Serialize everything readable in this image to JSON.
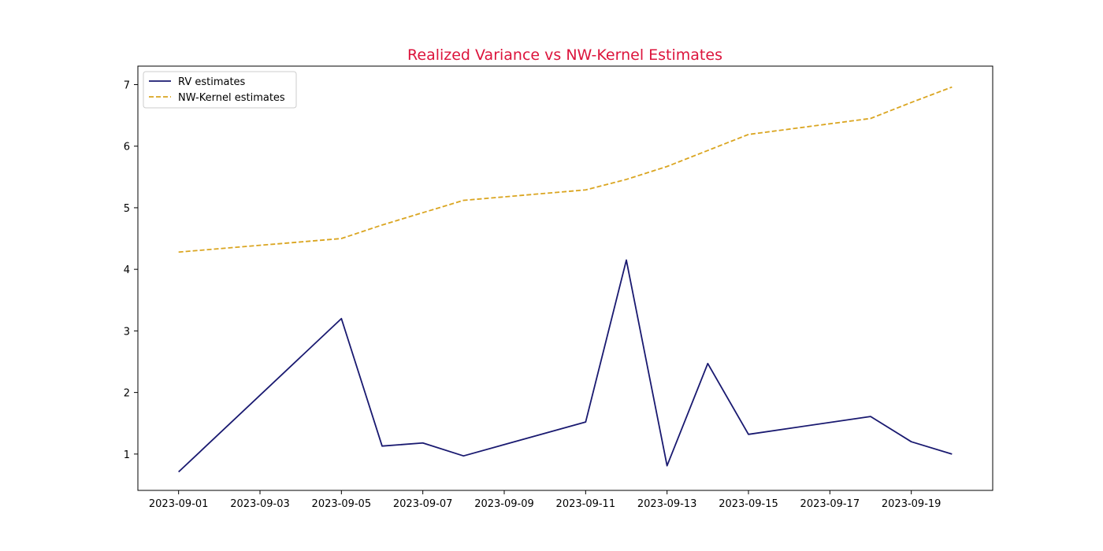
{
  "chart_data": {
    "type": "line",
    "title": "Realized Variance vs NW-Kernel Estimates",
    "title_color": "#dc143c",
    "xlabel": "",
    "ylabel": "",
    "x_dates": [
      "2023-09-01",
      "2023-09-05",
      "2023-09-06",
      "2023-09-07",
      "2023-09-08",
      "2023-09-11",
      "2023-09-12",
      "2023-09-13",
      "2023-09-14",
      "2023-09-15",
      "2023-09-18",
      "2023-09-19",
      "2023-09-20"
    ],
    "x_tick_labels": [
      "2023-09-01",
      "2023-09-03",
      "2023-09-05",
      "2023-09-07",
      "2023-09-09",
      "2023-09-11",
      "2023-09-13",
      "2023-09-15",
      "2023-09-17",
      "2023-09-19"
    ],
    "y_ticks": [
      1,
      2,
      3,
      4,
      5,
      6,
      7
    ],
    "ylim": [
      0.41,
      7.3
    ],
    "xlim": [
      "2023-08-31",
      "2023-09-21"
    ],
    "grid": false,
    "legend_position": "upper left",
    "series": [
      {
        "name": "RV estimates",
        "color": "#191970",
        "style": "solid",
        "values": [
          0.71,
          3.2,
          1.13,
          1.18,
          0.97,
          1.52,
          4.15,
          0.81,
          2.47,
          1.32,
          1.61,
          1.2,
          1.0
        ]
      },
      {
        "name": "NW-Kernel estimates",
        "color": "#daa520",
        "style": "dashed",
        "values": [
          4.28,
          4.5,
          4.72,
          4.92,
          5.12,
          5.29,
          5.46,
          5.67,
          5.93,
          6.19,
          6.45,
          6.71,
          6.96
        ]
      }
    ]
  }
}
